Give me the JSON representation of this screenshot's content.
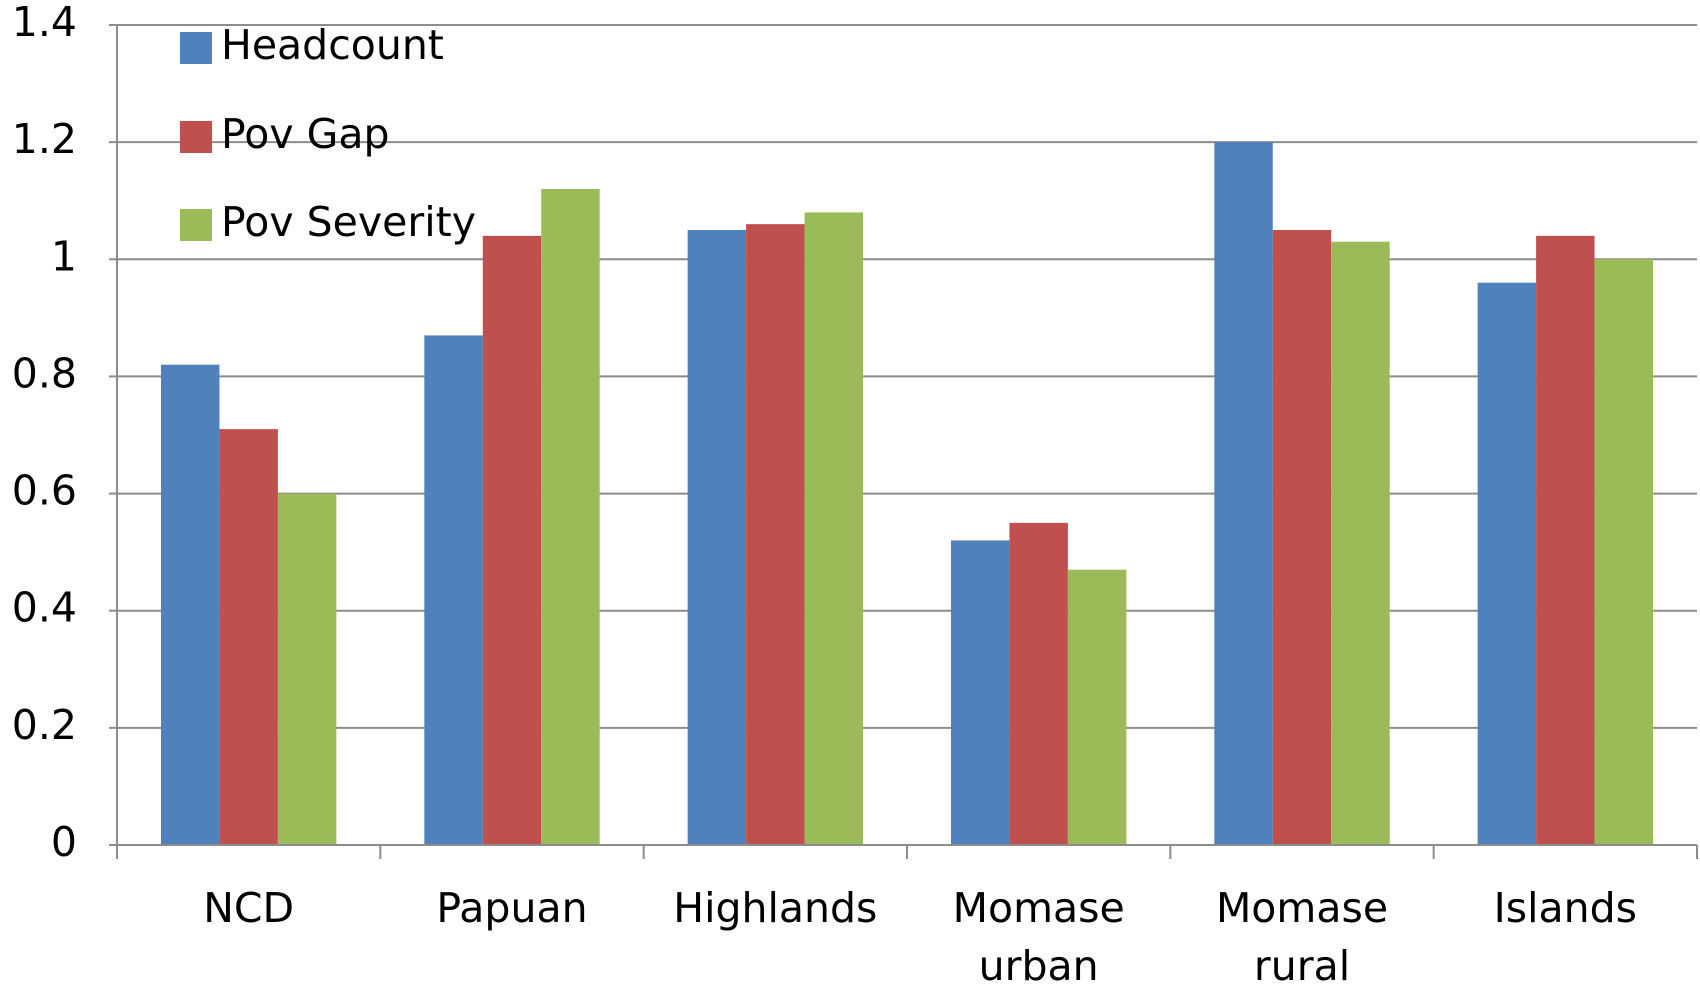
{
  "chart_data": {
    "type": "bar",
    "categories": [
      "NCD",
      "Papuan",
      "Highlands",
      "Momase urban",
      "Momase rural",
      "Islands"
    ],
    "series": [
      {
        "name": "Headcount",
        "color": "#4f81bd",
        "values": [
          0.82,
          0.87,
          1.05,
          0.52,
          1.2,
          0.96
        ]
      },
      {
        "name": "Pov Gap",
        "color": "#c0504d",
        "values": [
          0.71,
          1.04,
          1.06,
          0.55,
          1.05,
          1.04
        ]
      },
      {
        "name": "Pov Severity",
        "color": "#9bbb59",
        "values": [
          0.6,
          1.12,
          1.08,
          0.47,
          1.03,
          1.0
        ]
      }
    ],
    "ylim": [
      0,
      1.4
    ],
    "yticks": [
      0,
      0.2,
      0.4,
      0.6,
      0.8,
      1,
      1.2,
      1.4
    ],
    "grid": true,
    "legend": "top-left"
  }
}
